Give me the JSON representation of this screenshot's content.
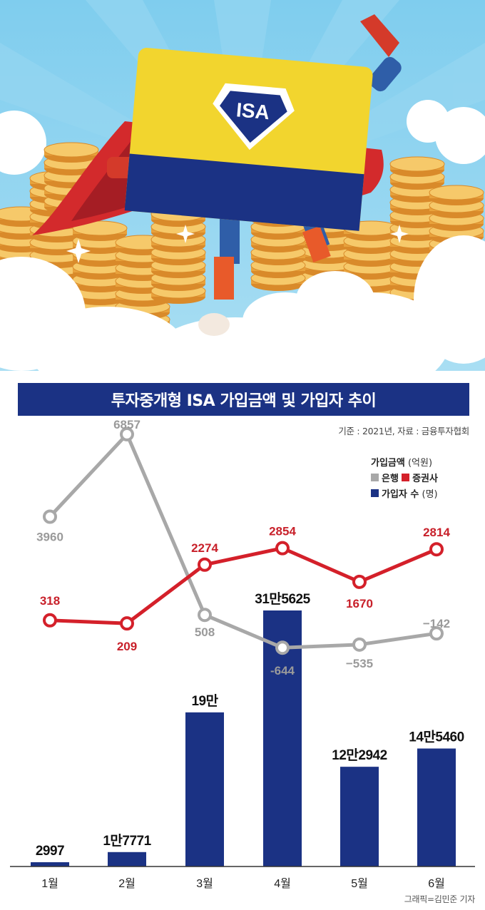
{
  "header": {
    "title": "투자중개형 ISA 가입금액 및 가입자 추이",
    "source": "기준 : 2021년, 자료 : 금융투자협회",
    "credit": "그래픽=김민준 기자"
  },
  "illustration": {
    "card_text": "ISA"
  },
  "legend": {
    "amount_title": "가입금액",
    "amount_unit": "(억원)",
    "bank_label": "은행",
    "securities_label": "증권사",
    "subscribers_label": "가입자 수",
    "subscribers_unit": "(명)"
  },
  "colors": {
    "navy": "#1b3284",
    "bank": "#a8a8a8",
    "securities": "#d4202a",
    "bank_label": "#9a9a9a",
    "securities_label": "#c8202a"
  },
  "chart_data": {
    "type": "bar+line",
    "categories": [
      "1월",
      "2월",
      "3월",
      "4월",
      "5월",
      "6월"
    ],
    "bars": {
      "name": "가입자 수",
      "values": [
        2997,
        17771,
        190000,
        315625,
        122942,
        145460
      ],
      "labels": [
        "2997",
        "1만7771",
        "19만",
        "31만5625",
        "12만2942",
        "14만5460"
      ]
    },
    "lines": [
      {
        "name": "은행",
        "values": [
          3960,
          6857,
          508,
          -644,
          -535,
          -142
        ],
        "labels": [
          "3960",
          "6857",
          "508",
          "-644",
          "−535",
          "−142"
        ]
      },
      {
        "name": "증권사",
        "values": [
          318,
          209,
          2274,
          2854,
          1670,
          2814
        ],
        "labels": [
          "318",
          "209",
          "2274",
          "2854",
          "1670",
          "2814"
        ]
      }
    ]
  }
}
